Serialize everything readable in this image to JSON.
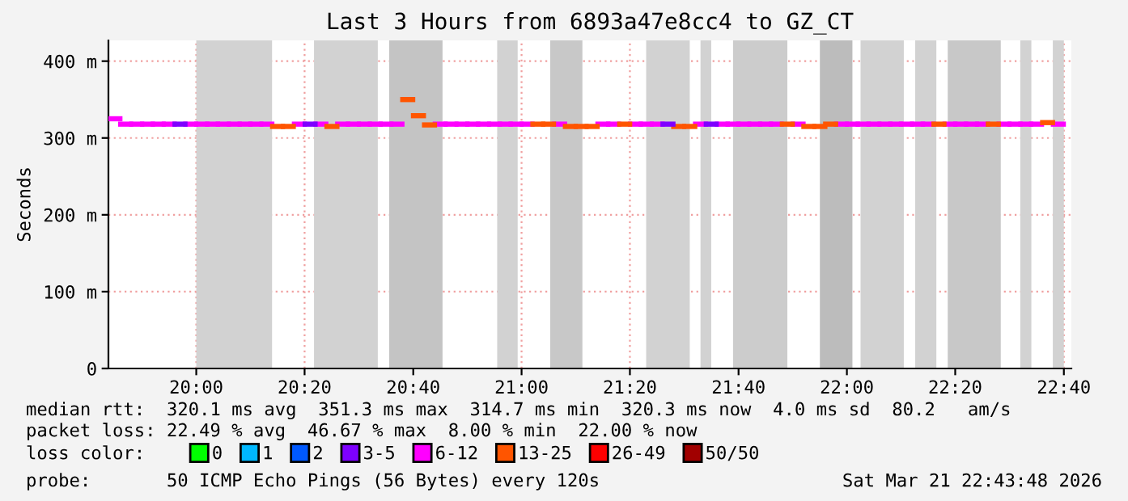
{
  "chart_data": {
    "type": "scatter",
    "marker": "square",
    "title": "Last 3 Hours from 6893a47e8cc4 to GZ_CT",
    "ylabel": "Seconds",
    "xlim": [
      19.73,
      22.69
    ],
    "xticks": [
      {
        "value": 20,
        "label": "20:00"
      },
      {
        "value": 20.333,
        "label": "20:20"
      },
      {
        "value": 20.667,
        "label": "20:40"
      },
      {
        "value": 21,
        "label": "21:00"
      },
      {
        "value": 21.333,
        "label": "21:20"
      },
      {
        "value": 21.667,
        "label": "21:40"
      },
      {
        "value": 22,
        "label": "22:00"
      },
      {
        "value": 22.333,
        "label": "22:20"
      },
      {
        "value": 22.667,
        "label": "22:40"
      }
    ],
    "ylim": [
      0,
      427
    ],
    "yticks": [
      {
        "value": 0,
        "label": "0"
      },
      {
        "value": 100,
        "label": "100 m"
      },
      {
        "value": 200,
        "label": "200 m"
      },
      {
        "value": 300,
        "label": "300 m"
      },
      {
        "value": 400,
        "label": "400 m"
      }
    ],
    "grid": true,
    "legend": "bottom",
    "legend_title": "loss color:",
    "series": [
      {
        "name": "0",
        "color": "#00ff00"
      },
      {
        "name": "1",
        "color": "#00b8ff"
      },
      {
        "name": "2",
        "color": "#0059ff"
      },
      {
        "name": "3-5",
        "color": "#7e00ff",
        "x": [
          19.95,
          20.35,
          21.45,
          21.583
        ],
        "values": [
          318,
          318,
          318,
          318
        ]
      },
      {
        "name": "6-12",
        "color": "#ff00ff",
        "x": [
          19.75,
          19.783,
          19.817,
          19.85,
          19.883,
          19.917,
          19.983,
          20.017,
          20.05,
          20.083,
          20.117,
          20.15,
          20.183,
          20.217,
          20.317,
          20.383,
          20.45,
          20.483,
          20.517,
          20.55,
          20.583,
          20.617,
          20.75,
          20.783,
          20.817,
          20.85,
          20.883,
          20.917,
          20.95,
          20.983,
          21.017,
          21.117,
          21.25,
          21.283,
          21.35,
          21.383,
          21.417,
          21.55,
          21.617,
          21.65,
          21.683,
          21.717,
          21.75,
          21.783,
          21.85,
          21.983,
          22.017,
          22.05,
          22.083,
          22.117,
          22.15,
          22.183,
          22.217,
          22.25,
          22.317,
          22.35,
          22.383,
          22.417,
          22.483,
          22.517,
          22.55,
          22.583,
          22.65
        ],
        "values": [
          325,
          318,
          318,
          318,
          318,
          318,
          318,
          318,
          318,
          318,
          318,
          318,
          318,
          318,
          318,
          318,
          318,
          318,
          318,
          318,
          318,
          318,
          318,
          318,
          318,
          318,
          318,
          318,
          318,
          318,
          318,
          318,
          318,
          318,
          318,
          318,
          318,
          318,
          318,
          318,
          318,
          318,
          318,
          318,
          318,
          318,
          318,
          318,
          318,
          318,
          318,
          318,
          318,
          318,
          318,
          318,
          318,
          318,
          318,
          318,
          318,
          318,
          318
        ]
      },
      {
        "name": "13-25",
        "color": "#ff5500",
        "x": [
          20.25,
          20.283,
          20.417,
          20.65,
          20.683,
          20.717,
          21.05,
          21.083,
          21.15,
          21.183,
          21.217,
          21.317,
          21.483,
          21.517,
          21.817,
          21.883,
          21.917,
          21.95,
          22.283,
          22.45,
          22.617
        ],
        "values": [
          315,
          315,
          315,
          350,
          329,
          317,
          318,
          318,
          315,
          315,
          315,
          318,
          315,
          315,
          318,
          315,
          315,
          318,
          318,
          318,
          320
        ]
      },
      {
        "name": "26-49",
        "color": "#ff0000"
      },
      {
        "name": "50/50",
        "color": "#a10000"
      }
    ],
    "bands": [
      {
        "axis": "x",
        "from": 20.0,
        "to": 20.233,
        "color": "#d2d2d2"
      },
      {
        "axis": "x",
        "from": 20.362,
        "to": 20.558,
        "color": "#d2d2d2"
      },
      {
        "axis": "x",
        "from": 20.593,
        "to": 20.757,
        "color": "#c4c4c4"
      },
      {
        "axis": "x",
        "from": 20.925,
        "to": 20.988,
        "color": "#d2d2d2"
      },
      {
        "axis": "x",
        "from": 21.088,
        "to": 21.187,
        "color": "#c8c8c8"
      },
      {
        "axis": "x",
        "from": 21.383,
        "to": 21.517,
        "color": "#d2d2d2"
      },
      {
        "axis": "x",
        "from": 21.55,
        "to": 21.583,
        "color": "#d2d2d2"
      },
      {
        "axis": "x",
        "from": 21.65,
        "to": 21.817,
        "color": "#cccccc"
      },
      {
        "axis": "x",
        "from": 21.917,
        "to": 22.017,
        "color": "#bcbcbc"
      },
      {
        "axis": "x",
        "from": 22.042,
        "to": 22.175,
        "color": "#d2d2d2"
      },
      {
        "axis": "x",
        "from": 22.21,
        "to": 22.275,
        "color": "#d2d2d2"
      },
      {
        "axis": "x",
        "from": 22.31,
        "to": 22.473,
        "color": "#c8c8c8"
      },
      {
        "axis": "x",
        "from": 22.533,
        "to": 22.567,
        "color": "#d2d2d2"
      },
      {
        "axis": "x",
        "from": 22.633,
        "to": 22.667,
        "color": "#d2d2d2"
      }
    ],
    "annotations": [
      "median rtt:  320.1 ms avg  351.3 ms max  314.7 ms min  320.3 ms now  4.0 ms sd  80.2   am/s",
      "packet loss: 22.49 % avg  46.67 % max  8.00 % min  22.00 % now",
      "probe:       50 ICMP Echo Pings (56 Bytes) every 120s",
      "Sat Mar 21 22:43:48 2026"
    ]
  }
}
